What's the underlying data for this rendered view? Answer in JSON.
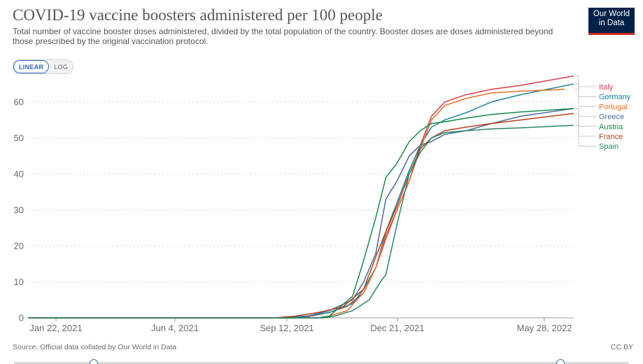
{
  "title": "COVID-19 vaccine boosters administered per 100 people",
  "subtitle": "Total number of vaccine booster doses administered, divided by the total population of the country. Booster doses are doses administered beyond those prescribed by the original vaccination protocol.",
  "logo": {
    "line1": "Our World",
    "line2": "in Data"
  },
  "scale_toggle": {
    "linear": "LINEAR",
    "log": "LOG"
  },
  "footer": {
    "source": "Source: Official data collated by Our World in Data",
    "license": "CC BY"
  },
  "colors": {
    "grid": "#dddddd",
    "axis": "#6b6b6b",
    "text": "#555555"
  },
  "chart_data": {
    "type": "line",
    "title": "COVID-19 vaccine boosters administered per 100 people",
    "xlabel": "",
    "ylabel": "",
    "x_range": [
      "2021-01-22",
      "2022-05-28"
    ],
    "x_ticks": [
      "Jan 22, 2021",
      "Jun 4, 2021",
      "Sep 12, 2021",
      "Dec 21, 2021",
      "May 28, 2022"
    ],
    "y_ticks": [
      0,
      10,
      20,
      30,
      40,
      50,
      60
    ],
    "ylim": [
      0,
      66
    ],
    "grid": true,
    "legend": "right",
    "series": [
      {
        "name": "Italy",
        "color": "#d73c50",
        "points": [
          [
            "2021-01-22",
            0
          ],
          [
            "2021-09-12",
            0
          ],
          [
            "2021-09-30",
            0.3
          ],
          [
            "2021-10-20",
            1.5
          ],
          [
            "2021-11-05",
            3.2
          ],
          [
            "2021-11-20",
            7
          ],
          [
            "2021-12-01",
            14
          ],
          [
            "2021-12-10",
            22
          ],
          [
            "2021-12-20",
            30
          ],
          [
            "2021-12-31",
            38
          ],
          [
            "2022-01-10",
            48
          ],
          [
            "2022-01-20",
            56
          ],
          [
            "2022-02-01",
            60
          ],
          [
            "2022-02-20",
            62
          ],
          [
            "2022-03-15",
            63.5
          ],
          [
            "2022-04-10",
            64.6
          ],
          [
            "2022-05-28",
            67.2
          ]
        ]
      },
      {
        "name": "Germany",
        "color": "#18849a",
        "points": [
          [
            "2021-01-22",
            0
          ],
          [
            "2021-09-01",
            0
          ],
          [
            "2021-09-30",
            0.5
          ],
          [
            "2021-10-20",
            1.5
          ],
          [
            "2021-11-10",
            4
          ],
          [
            "2021-11-20",
            8
          ],
          [
            "2021-12-01",
            14
          ],
          [
            "2021-12-10",
            24
          ],
          [
            "2021-12-20",
            32
          ],
          [
            "2021-12-31",
            41
          ],
          [
            "2022-01-10",
            48
          ],
          [
            "2022-01-20",
            53
          ],
          [
            "2022-02-01",
            55
          ],
          [
            "2022-02-20",
            57
          ],
          [
            "2022-03-15",
            60
          ],
          [
            "2022-04-10",
            62
          ],
          [
            "2022-05-28",
            65
          ]
        ]
      },
      {
        "name": "Portugal",
        "color": "#e07023",
        "points": [
          [
            "2021-01-22",
            0
          ],
          [
            "2021-10-10",
            0
          ],
          [
            "2021-10-20",
            0.5
          ],
          [
            "2021-11-05",
            2
          ],
          [
            "2021-11-20",
            7
          ],
          [
            "2021-12-01",
            14
          ],
          [
            "2021-12-10",
            23
          ],
          [
            "2021-12-20",
            30
          ],
          [
            "2021-12-31",
            38
          ],
          [
            "2022-01-10",
            47
          ],
          [
            "2022-01-20",
            55
          ],
          [
            "2022-02-01",
            59
          ],
          [
            "2022-02-20",
            61
          ],
          [
            "2022-03-15",
            62.5
          ],
          [
            "2022-04-10",
            63
          ],
          [
            "2022-05-20",
            63.5
          ]
        ]
      },
      {
        "name": "Greece",
        "color": "#4c6a9c",
        "points": [
          [
            "2021-01-22",
            0
          ],
          [
            "2021-09-20",
            0
          ],
          [
            "2021-10-01",
            0.5
          ],
          [
            "2021-10-20",
            2
          ],
          [
            "2021-11-10",
            5
          ],
          [
            "2021-11-20",
            10
          ],
          [
            "2021-12-01",
            18
          ],
          [
            "2021-12-10",
            33
          ],
          [
            "2021-12-20",
            38
          ],
          [
            "2021-12-31",
            45
          ],
          [
            "2022-01-10",
            48
          ],
          [
            "2022-01-20",
            49
          ],
          [
            "2022-02-01",
            51
          ],
          [
            "2022-02-20",
            52
          ],
          [
            "2022-03-15",
            54
          ],
          [
            "2022-04-10",
            56
          ],
          [
            "2022-05-28",
            58.2
          ]
        ]
      },
      {
        "name": "Austria",
        "color": "#168c47",
        "points": [
          [
            "2021-01-22",
            0
          ],
          [
            "2021-10-10",
            0
          ],
          [
            "2021-10-20",
            0.5
          ],
          [
            "2021-11-10",
            6
          ],
          [
            "2021-11-20",
            16
          ],
          [
            "2021-12-01",
            28
          ],
          [
            "2021-12-10",
            39
          ],
          [
            "2021-12-20",
            43
          ],
          [
            "2021-12-31",
            49
          ],
          [
            "2022-01-10",
            52
          ],
          [
            "2022-01-20",
            54
          ],
          [
            "2022-02-01",
            54.5
          ],
          [
            "2022-02-20",
            55.5
          ],
          [
            "2022-03-15",
            56.5
          ],
          [
            "2022-04-10",
            57.2
          ],
          [
            "2022-05-28",
            58.2
          ]
        ]
      },
      {
        "name": "France",
        "color": "#b2401e",
        "points": [
          [
            "2021-01-22",
            0
          ],
          [
            "2021-09-01",
            0
          ],
          [
            "2021-09-20",
            0.5
          ],
          [
            "2021-10-10",
            1.5
          ],
          [
            "2021-11-01",
            3
          ],
          [
            "2021-11-20",
            8
          ],
          [
            "2021-12-01",
            17
          ],
          [
            "2021-12-10",
            24
          ],
          [
            "2021-12-20",
            31
          ],
          [
            "2021-12-31",
            40
          ],
          [
            "2022-01-10",
            47
          ],
          [
            "2022-01-20",
            50
          ],
          [
            "2022-02-01",
            52
          ],
          [
            "2022-02-20",
            53
          ],
          [
            "2022-03-15",
            54
          ],
          [
            "2022-04-10",
            55
          ],
          [
            "2022-05-28",
            56.8
          ]
        ]
      },
      {
        "name": "Spain",
        "color": "#2c8465",
        "points": [
          [
            "2021-01-22",
            0
          ],
          [
            "2021-10-15",
            0
          ],
          [
            "2021-10-25",
            0.5
          ],
          [
            "2021-11-10",
            2
          ],
          [
            "2021-11-25",
            5
          ],
          [
            "2021-12-05",
            10
          ],
          [
            "2021-12-10",
            12
          ],
          [
            "2021-12-20",
            26
          ],
          [
            "2021-12-31",
            40
          ],
          [
            "2022-01-10",
            46
          ],
          [
            "2022-01-20",
            50
          ],
          [
            "2022-02-01",
            51.5
          ],
          [
            "2022-02-20",
            52
          ],
          [
            "2022-03-15",
            52.5
          ],
          [
            "2022-04-10",
            52.8
          ],
          [
            "2022-05-28",
            53.5
          ]
        ]
      }
    ]
  }
}
